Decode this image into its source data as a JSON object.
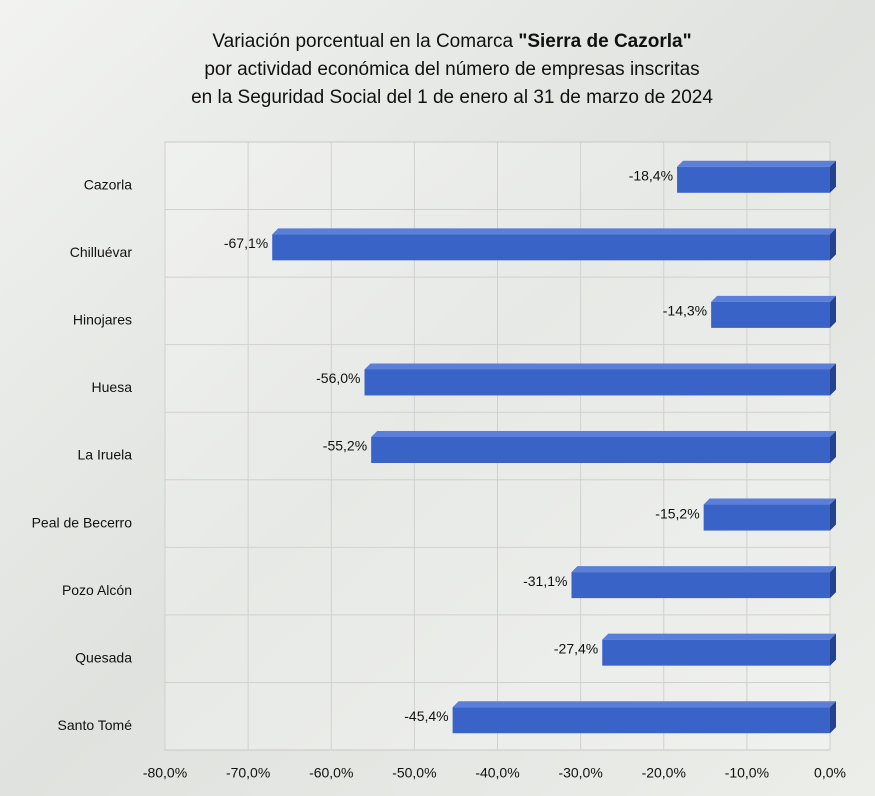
{
  "chart_data": {
    "type": "bar",
    "orientation": "horizontal",
    "title": [
      "Variación porcentual en la Comarca",
      "\"Sierra de Cazorla\"",
      "por actividad económica del número de empresas inscritas",
      "en la Seguridad Social del 1 de enero al 31 de marzo de 2024"
    ],
    "categories": [
      "Cazorla",
      "Chilluévar",
      "Hinojares",
      "Huesa",
      "La Iruela",
      "Peal de Becerro",
      "Pozo Alcón",
      "Quesada",
      "Santo Tomé"
    ],
    "values": [
      -18.4,
      -67.1,
      -14.3,
      -56.0,
      -55.2,
      -15.2,
      -31.1,
      -27.4,
      -45.4
    ],
    "value_labels": [
      "-18,4%",
      "-67,1%",
      "-14,3%",
      "-56,0%",
      "-55,2%",
      "-15,2%",
      "-31,1%",
      "-27,4%",
      "-45,4%"
    ],
    "color": "#3a63c8",
    "xlim": [
      -80,
      0
    ],
    "xticks": [
      {
        "value": -80,
        "label": "-80,0%"
      },
      {
        "value": -70,
        "label": "-70,0%"
      },
      {
        "value": -60,
        "label": "-60,0%"
      },
      {
        "value": -50,
        "label": "-50,0%"
      },
      {
        "value": -40,
        "label": "-40,0%"
      },
      {
        "value": -30,
        "label": "-30,0%"
      },
      {
        "value": -20,
        "label": "-20,0%"
      },
      {
        "value": -10,
        "label": "-10,0%"
      },
      {
        "value": 0,
        "label": "0,0%"
      }
    ],
    "grid": true
  }
}
